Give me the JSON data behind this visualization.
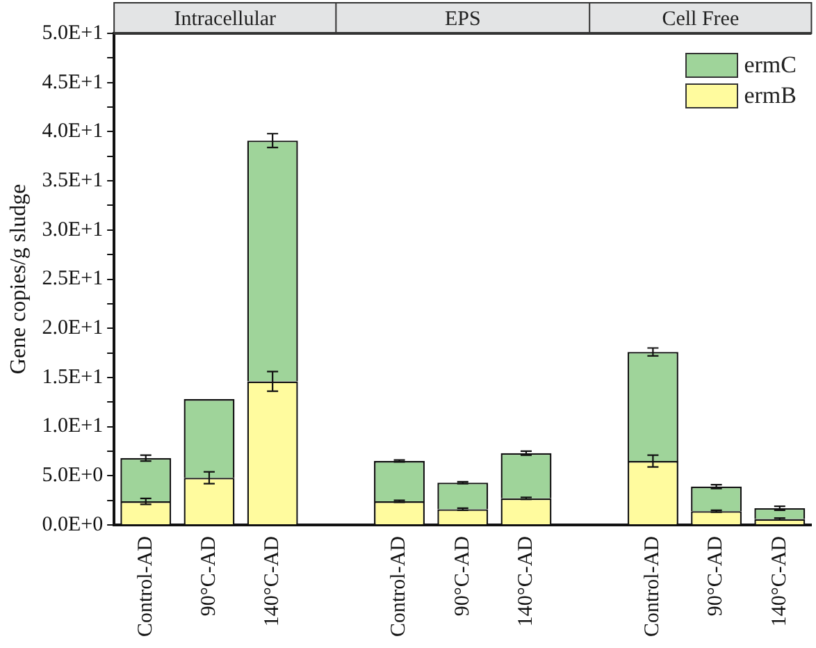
{
  "chart_data": {
    "type": "bar",
    "stacked": true,
    "ylabel": "Gene copies/g sludge",
    "annotations": [
      "Intracellular",
      "EPS",
      "Cell Free"
    ],
    "categories": [
      "Control-AD",
      "90°C-AD",
      "140°C-AD",
      null,
      "Control-AD",
      "90°C-AD",
      "140°C-AD",
      null,
      "Control-AD",
      "90°C-AD",
      "140°C-AD"
    ],
    "series": [
      {
        "name": "ermB",
        "color": "#fffb9e",
        "values": [
          2.4,
          4.8,
          14.6,
          null,
          2.4,
          1.6,
          2.7,
          null,
          6.5,
          1.4,
          0.6
        ],
        "errors": [
          0.3,
          0.6,
          1.0,
          null,
          0.1,
          0.1,
          0.1,
          null,
          0.6,
          0.1,
          0.1
        ]
      },
      {
        "name": "ermC",
        "color": "#9fd49a",
        "values": [
          4.4,
          8.0,
          24.5,
          null,
          4.1,
          2.7,
          4.6,
          null,
          11.1,
          2.5,
          1.1
        ],
        "errors": [
          0.3,
          null,
          0.7,
          null,
          0.1,
          0.1,
          0.2,
          null,
          0.4,
          0.2,
          0.2
        ]
      }
    ],
    "ylim": [
      0,
      50
    ],
    "yticks": [
      {
        "value": 0,
        "label": "0.0E+0"
      },
      {
        "value": 2.5,
        "label": null
      },
      {
        "value": 5,
        "label": "5.0E+0"
      },
      {
        "value": 7.5,
        "label": null
      },
      {
        "value": 10,
        "label": "1.0E+1"
      },
      {
        "value": 12.5,
        "label": null
      },
      {
        "value": 15,
        "label": "1.5E+1"
      },
      {
        "value": 17.5,
        "label": null
      },
      {
        "value": 20,
        "label": "2.0E+1"
      },
      {
        "value": 22.5,
        "label": null
      },
      {
        "value": 25,
        "label": "2.5E+1"
      },
      {
        "value": 27.5,
        "label": null
      },
      {
        "value": 30,
        "label": "3.0E+1"
      },
      {
        "value": 32.5,
        "label": null
      },
      {
        "value": 35,
        "label": "3.5E+1"
      },
      {
        "value": 37.5,
        "label": null
      },
      {
        "value": 40,
        "label": "4.0E+1"
      },
      {
        "value": 42.5,
        "label": null
      },
      {
        "value": 45,
        "label": "4.5E+1"
      },
      {
        "value": 47.5,
        "label": null
      },
      {
        "value": 50,
        "label": "5.0E+1"
      }
    ],
    "grid": false,
    "legend": "top right"
  }
}
